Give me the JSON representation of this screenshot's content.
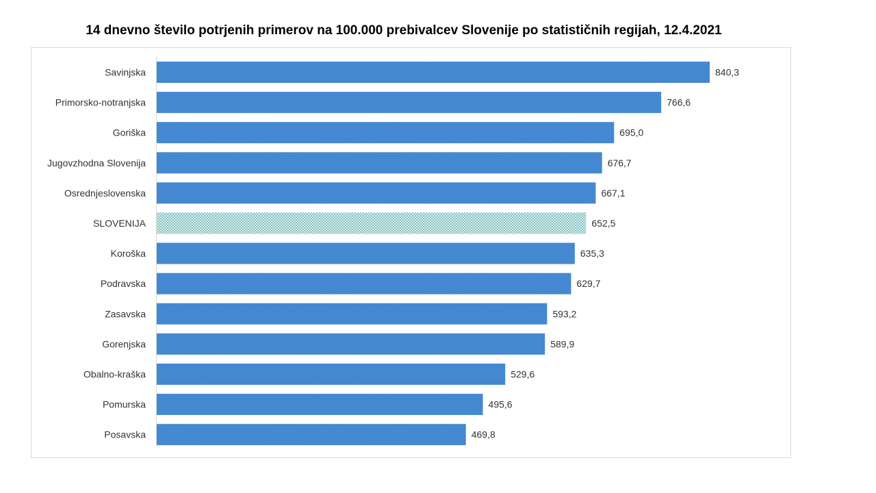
{
  "chart_data": {
    "type": "bar",
    "orientation": "horizontal",
    "title": "14 dnevno število potrjenih primerov na 100.000 prebivalcev Slovenije po statističnih regijah, 12.4.2021",
    "categories": [
      "Savinjska",
      "Primorsko-notranjska",
      "Goriška",
      "Jugovzhodna Slovenija",
      "Osrednjeslovenska",
      "SLOVENIJA",
      "Koroška",
      "Podravska",
      "Zasavska",
      "Gorenjska",
      "Obalno-kraška",
      "Pomurska",
      "Posavska"
    ],
    "values": [
      840.3,
      766.6,
      695.0,
      676.7,
      667.1,
      652.5,
      635.3,
      629.7,
      593.2,
      589.9,
      529.6,
      495.6,
      469.8
    ],
    "value_labels": [
      "840,3",
      "766,6",
      "695,0",
      "676,7",
      "667,1",
      "652,5",
      "635,3",
      "629,7",
      "593,2",
      "589,9",
      "529,6",
      "495,6",
      "469,8"
    ],
    "highlight_category": "SLOVENIJA",
    "xlim": [
      0,
      840.3
    ],
    "grid": false,
    "legend": "none",
    "colors": {
      "bar": "#4a90d9",
      "bar_dot": "#2f6fb8",
      "highlight": "#d8f0f0",
      "highlight_dot": "#2c8a8a"
    }
  }
}
